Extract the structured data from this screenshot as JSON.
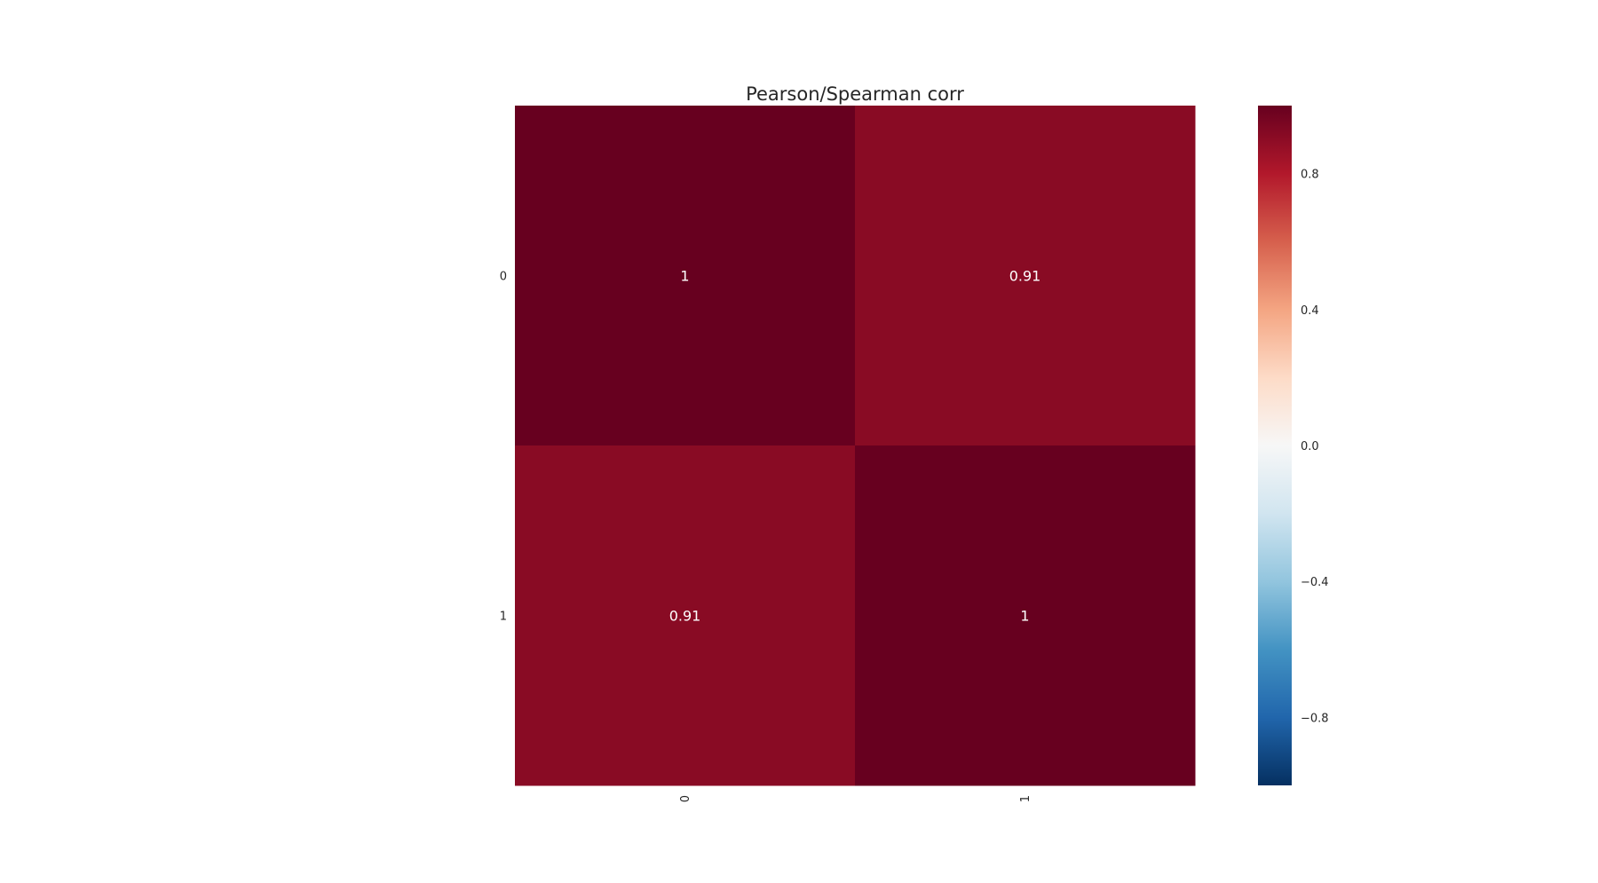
{
  "chart_data": {
    "type": "heatmap",
    "title": "Pearson/Spearman corr",
    "row_labels": [
      "0",
      "1"
    ],
    "col_labels": [
      "0",
      "1"
    ],
    "values": [
      [
        1.0,
        0.91
      ],
      [
        0.91,
        1.0
      ]
    ],
    "annotations": [
      [
        "1",
        "0.91"
      ],
      [
        "0.91",
        "1"
      ]
    ],
    "xlabel": "",
    "ylabel": "",
    "x_tick_rotation": 90,
    "colormap": "RdBu_r",
    "colorbar": {
      "vmin": -1.0,
      "vmax": 1.0,
      "ticks": [
        0.8,
        0.4,
        0.0,
        -0.4,
        -0.8
      ],
      "tick_labels": [
        "0.8",
        "0.4",
        "0.0",
        "−0.4",
        "−0.8"
      ]
    },
    "colors": {
      "annotation_text": "#ffffff",
      "label_text": "#262626"
    }
  }
}
